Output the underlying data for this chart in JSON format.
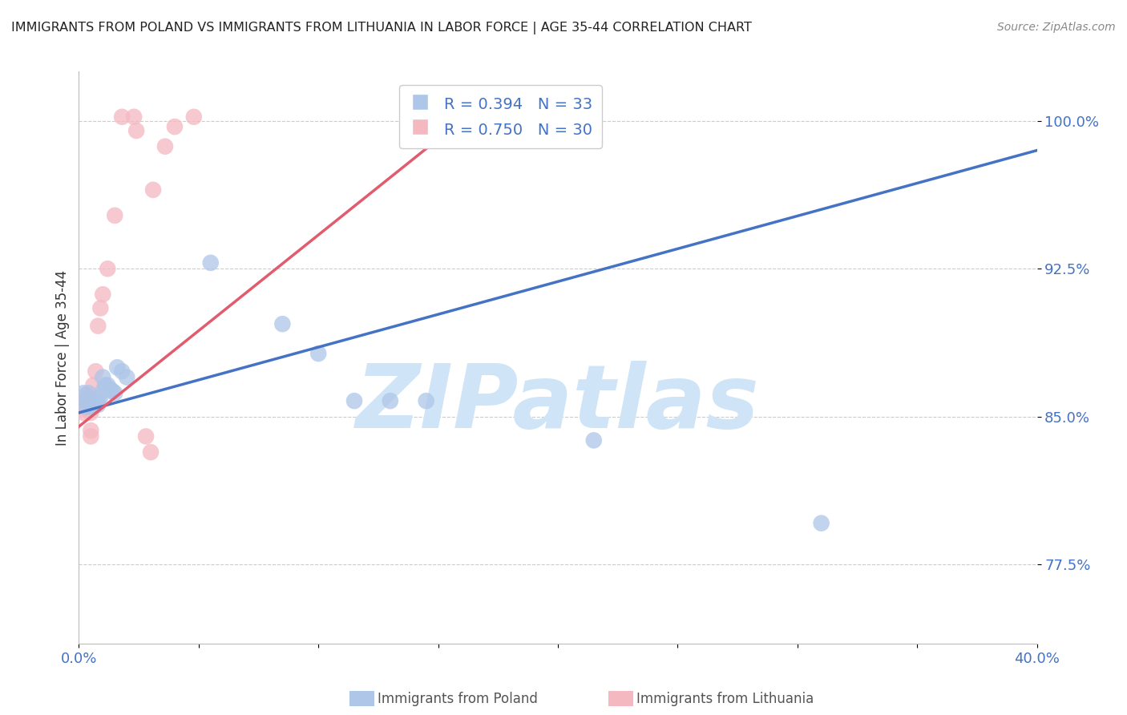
{
  "title": "IMMIGRANTS FROM POLAND VS IMMIGRANTS FROM LITHUANIA IN LABOR FORCE | AGE 35-44 CORRELATION CHART",
  "source": "Source: ZipAtlas.com",
  "ylabel": "In Labor Force | Age 35-44",
  "xlim": [
    0.0,
    0.4
  ],
  "ylim": [
    0.735,
    1.025
  ],
  "yticks": [
    0.775,
    0.85,
    0.925,
    1.0
  ],
  "ytick_labels": [
    "77.5%",
    "85.0%",
    "92.5%",
    "100.0%"
  ],
  "xticks": [
    0.0,
    0.05,
    0.1,
    0.15,
    0.2,
    0.25,
    0.3,
    0.35,
    0.4
  ],
  "xtick_labels": [
    "0.0%",
    "",
    "",
    "",
    "",
    "",
    "",
    "",
    "40.0%"
  ],
  "poland_R": 0.394,
  "poland_N": 33,
  "lithuania_R": 0.75,
  "lithuania_N": 30,
  "poland_color": "#aec6e8",
  "lithuania_color": "#f4b8c1",
  "poland_line_color": "#4472C4",
  "lithuania_line_color": "#E05C6E",
  "poland_scatter": [
    [
      0.002,
      0.862
    ],
    [
      0.003,
      0.858
    ],
    [
      0.003,
      0.855
    ],
    [
      0.004,
      0.858
    ],
    [
      0.004,
      0.862
    ],
    [
      0.005,
      0.858
    ],
    [
      0.005,
      0.856
    ],
    [
      0.005,
      0.855
    ],
    [
      0.006,
      0.858
    ],
    [
      0.006,
      0.856
    ],
    [
      0.006,
      0.855
    ],
    [
      0.007,
      0.858
    ],
    [
      0.008,
      0.858
    ],
    [
      0.008,
      0.856
    ],
    [
      0.009,
      0.86
    ],
    [
      0.01,
      0.863
    ],
    [
      0.01,
      0.87
    ],
    [
      0.011,
      0.866
    ],
    [
      0.012,
      0.866
    ],
    [
      0.013,
      0.864
    ],
    [
      0.014,
      0.863
    ],
    [
      0.015,
      0.862
    ],
    [
      0.016,
      0.875
    ],
    [
      0.018,
      0.873
    ],
    [
      0.02,
      0.87
    ],
    [
      0.055,
      0.928
    ],
    [
      0.085,
      0.897
    ],
    [
      0.1,
      0.882
    ],
    [
      0.115,
      0.858
    ],
    [
      0.13,
      0.858
    ],
    [
      0.145,
      0.858
    ],
    [
      0.215,
      0.838
    ],
    [
      0.31,
      0.796
    ]
  ],
  "lithuania_scatter": [
    [
      0.001,
      0.858
    ],
    [
      0.002,
      0.856
    ],
    [
      0.002,
      0.854
    ],
    [
      0.002,
      0.852
    ],
    [
      0.003,
      0.861
    ],
    [
      0.003,
      0.858
    ],
    [
      0.003,
      0.855
    ],
    [
      0.004,
      0.861
    ],
    [
      0.004,
      0.858
    ],
    [
      0.004,
      0.854
    ],
    [
      0.005,
      0.855
    ],
    [
      0.005,
      0.852
    ],
    [
      0.005,
      0.843
    ],
    [
      0.005,
      0.84
    ],
    [
      0.006,
      0.866
    ],
    [
      0.007,
      0.873
    ],
    [
      0.008,
      0.896
    ],
    [
      0.009,
      0.905
    ],
    [
      0.01,
      0.912
    ],
    [
      0.012,
      0.925
    ],
    [
      0.015,
      0.952
    ],
    [
      0.018,
      1.002
    ],
    [
      0.023,
      1.002
    ],
    [
      0.024,
      0.995
    ],
    [
      0.028,
      0.84
    ],
    [
      0.03,
      0.832
    ],
    [
      0.031,
      0.965
    ],
    [
      0.036,
      0.987
    ],
    [
      0.04,
      0.997
    ],
    [
      0.048,
      1.002
    ]
  ],
  "poland_trend_x": [
    0.0,
    0.4
  ],
  "poland_trend_y": [
    0.852,
    0.985
  ],
  "lithuania_trend_x": [
    0.0,
    0.175
  ],
  "lithuania_trend_y": [
    0.845,
    1.015
  ],
  "watermark": "ZIPatlas",
  "watermark_color": "#d0e4f7",
  "background_color": "#ffffff",
  "grid_color": "#cccccc",
  "title_color": "#222222",
  "axis_label_color": "#333333",
  "tick_color": "#4472C4",
  "legend_color": "#4472C4"
}
